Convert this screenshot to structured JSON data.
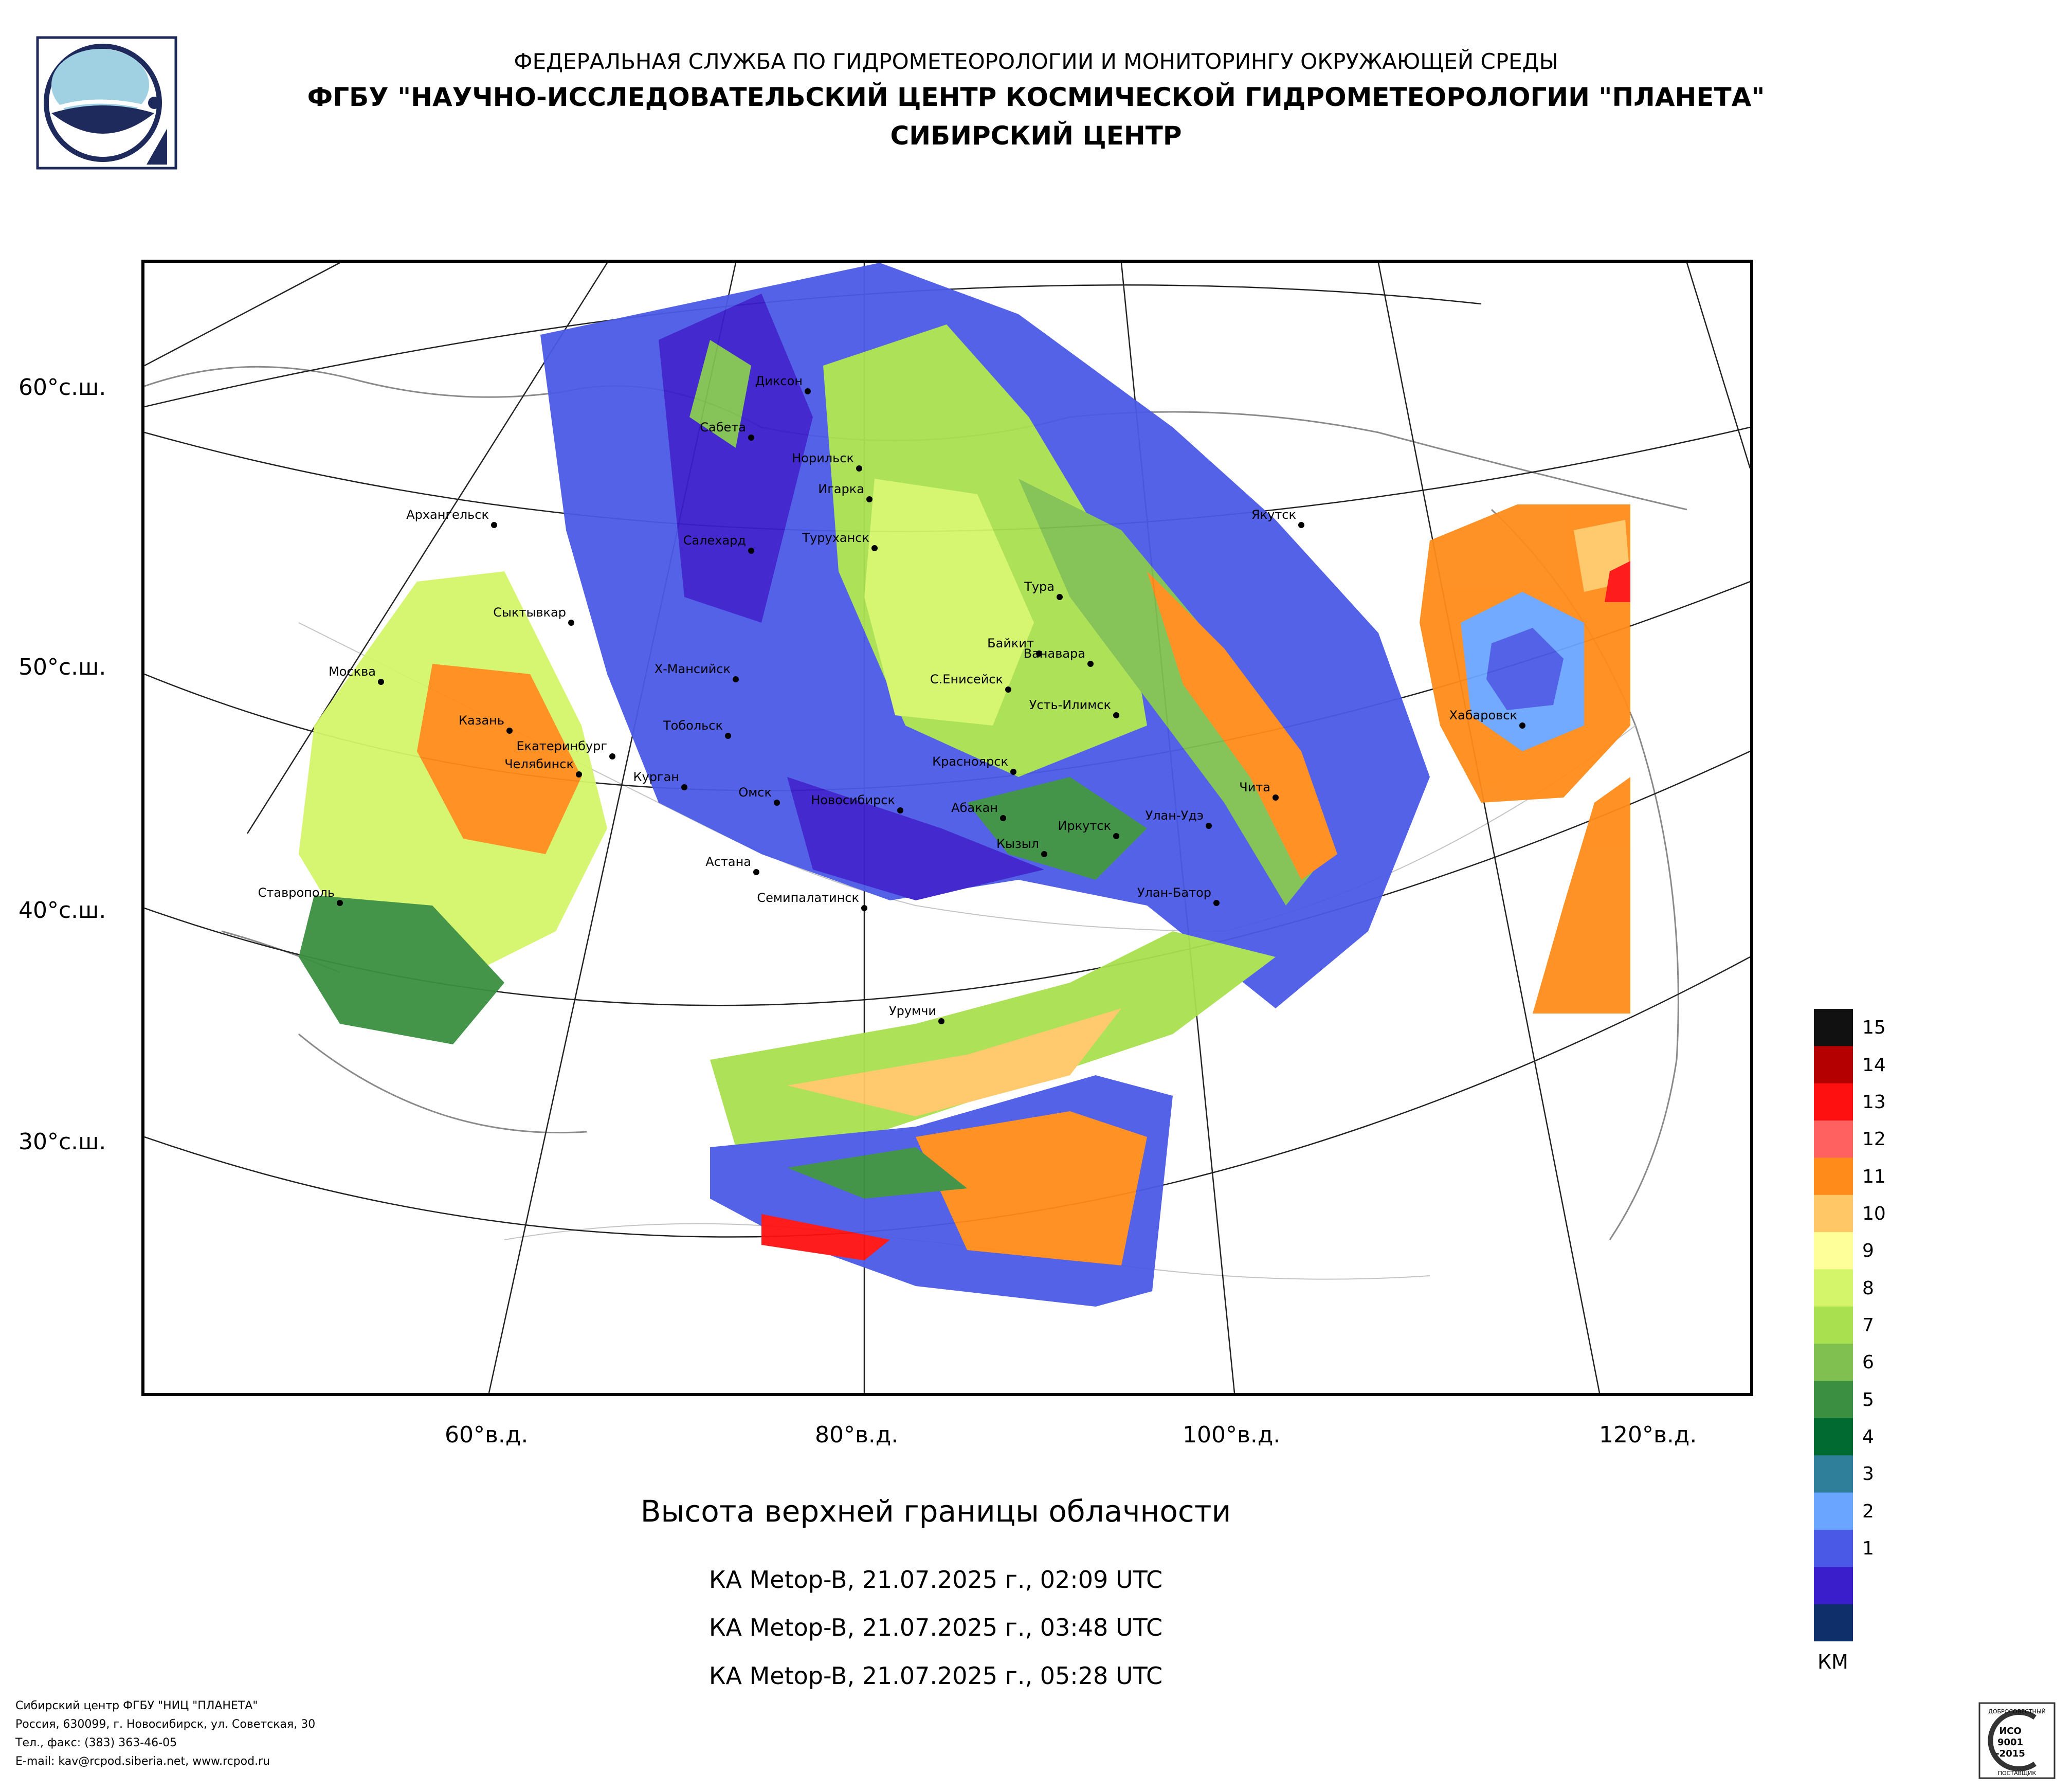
{
  "header": {
    "agency": "ФЕДЕРАЛЬНАЯ СЛУЖБА ПО ГИДРОМЕТЕОРОЛОГИИ И МОНИТОРИНГУ ОКРУЖАЮЩЕЙ СРЕДЫ",
    "organization": "ФГБУ \"НАУЧНО-ИССЛЕДОВАТЕЛЬСКИЙ ЦЕНТР КОСМИЧЕСКОЙ ГИДРОМЕТЕОРОЛОГИИ \"ПЛАНЕТА\"",
    "center": "СИБИРСКИЙ ЦЕНТР"
  },
  "map": {
    "latitude_labels": [
      "60°с.ш.",
      "50°с.ш.",
      "40°с.ш.",
      "30°с.ш."
    ],
    "longitude_labels": [
      "60°в.д.",
      "80°в.д.",
      "100°в.д.",
      "120°в.д."
    ],
    "cities": [
      {
        "name": "Диксон"
      },
      {
        "name": "Сабета"
      },
      {
        "name": "Норильск"
      },
      {
        "name": "Игарка"
      },
      {
        "name": "Архангельск"
      },
      {
        "name": "Салехард"
      },
      {
        "name": "Туруханск"
      },
      {
        "name": "Тура"
      },
      {
        "name": "Якутск"
      },
      {
        "name": "Сыктывкар"
      },
      {
        "name": "Байкит"
      },
      {
        "name": "Ванавара"
      },
      {
        "name": "Москва"
      },
      {
        "name": "Х-Мансийск"
      },
      {
        "name": "С.Енисейск"
      },
      {
        "name": "Усть-Илимск"
      },
      {
        "name": "Хабаровск"
      },
      {
        "name": "Казань"
      },
      {
        "name": "Тобольск"
      },
      {
        "name": "Екатеринбург"
      },
      {
        "name": "Челябинск"
      },
      {
        "name": "Красноярск"
      },
      {
        "name": "Курган"
      },
      {
        "name": "Омск"
      },
      {
        "name": "Новосибирск"
      },
      {
        "name": "Абакан"
      },
      {
        "name": "Чита"
      },
      {
        "name": "Улан-Удэ"
      },
      {
        "name": "Иркутск"
      },
      {
        "name": "Кызыл"
      },
      {
        "name": "Астана"
      },
      {
        "name": "Ставрополь"
      },
      {
        "name": "Семипалатинск"
      },
      {
        "name": "Улан-Батор"
      },
      {
        "name": "Урумчи"
      }
    ]
  },
  "title": "Высота верхней границы облачности",
  "passes": [
    "КА Metop-B, 21.07.2025 г., 02:09 UTC",
    "КА Metop-B, 21.07.2025 г., 03:48 UTC",
    "КА Metop-B, 21.07.2025 г., 05:28 UTC"
  ],
  "legend": {
    "unit": "КМ",
    "levels": [
      {
        "label": "15",
        "color": "#111111"
      },
      {
        "label": "14",
        "color": "#b40000"
      },
      {
        "label": "13",
        "color": "#ff1010"
      },
      {
        "label": "12",
        "color": "#ff6060"
      },
      {
        "label": "11",
        "color": "#ff8c1a"
      },
      {
        "label": "10",
        "color": "#ffc766"
      },
      {
        "label": "9",
        "color": "#ffff99"
      },
      {
        "label": "8",
        "color": "#d4f56a"
      },
      {
        "label": "7",
        "color": "#a8e050"
      },
      {
        "label": "6",
        "color": "#80c050"
      },
      {
        "label": "5",
        "color": "#3a9040"
      },
      {
        "label": "4",
        "color": "#006a30"
      },
      {
        "label": "3",
        "color": "#2f7f9a"
      },
      {
        "label": "2",
        "color": "#6aa6ff"
      },
      {
        "label": "1",
        "color": "#4b5ae6"
      },
      {
        "label": "",
        "color": "#3a1ecc"
      },
      {
        "label": "",
        "color": "#0e2f6a"
      }
    ]
  },
  "footer": {
    "line1": "Сибирский центр ФГБУ \"НИЦ \"ПЛАНЕТА\"",
    "line2": "Россия, 630099, г. Новосибирск, ул. Советская, 30",
    "line3": "Тел., факс: (383) 363-46-05",
    "line4": "E-mail: kav@rcpod.siberia.net, www.rcpod.ru"
  },
  "iso_badge": {
    "top": "ДОБРОСОВЕСТНЫЙ",
    "line1": "ИСО",
    "line2": "9001",
    "line3": "-2015",
    "bottom": "ПОСТАВЩИК"
  }
}
